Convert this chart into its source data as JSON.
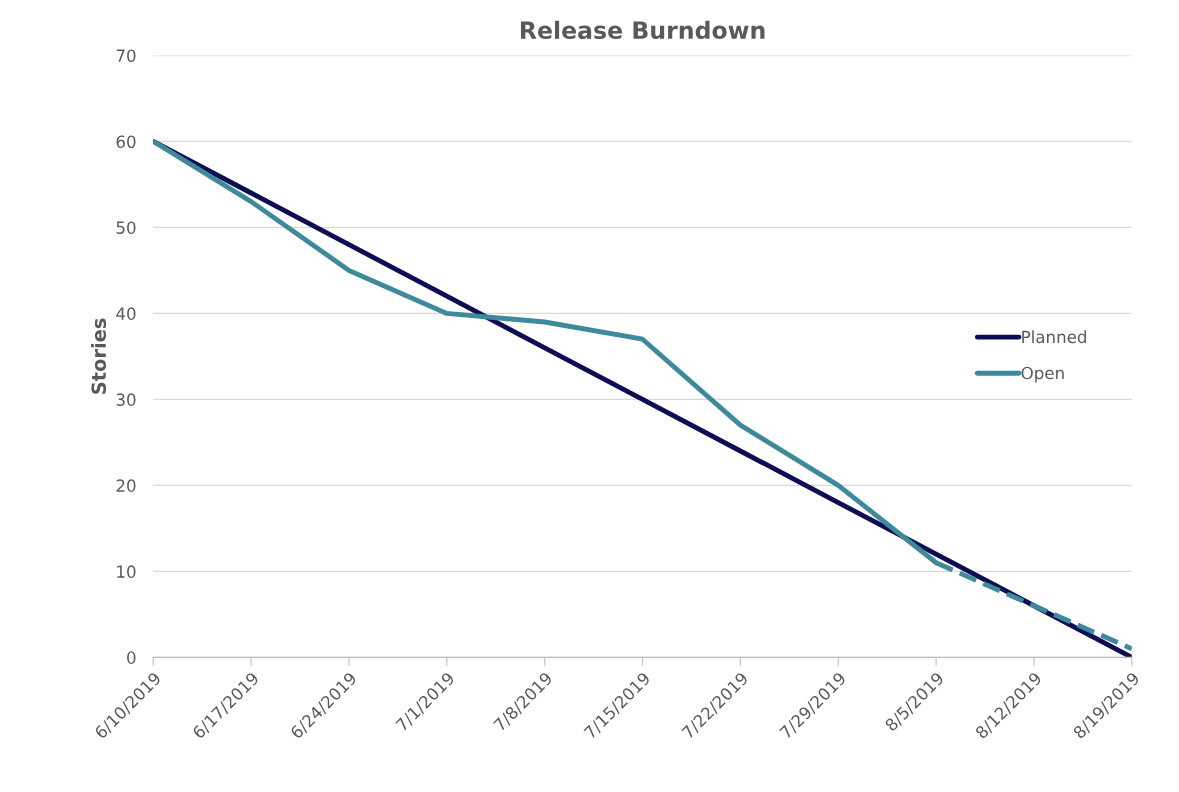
{
  "chart_data": {
    "type": "line",
    "title": "Release Burndown",
    "ylabel": "Stories",
    "categories": [
      "6/10/2019",
      "6/17/2019",
      "6/24/2019",
      "7/1/2019",
      "7/8/2019",
      "7/15/2019",
      "7/22/2019",
      "7/29/2019",
      "8/5/2019",
      "8/12/2019",
      "8/19/2019"
    ],
    "series": [
      {
        "name": "Planned",
        "color": "#0d0d55",
        "values": [
          60,
          54,
          48,
          42,
          36,
          30,
          24,
          18,
          12,
          6,
          0
        ]
      },
      {
        "name": "Open",
        "color": "#3e8a9c",
        "values": [
          60,
          53,
          45,
          40,
          39,
          37,
          27,
          20,
          11,
          null,
          null
        ]
      },
      {
        "color": "#3e8a9c",
        "line_style": "dashed",
        "values": [
          null,
          null,
          null,
          null,
          null,
          null,
          null,
          null,
          11,
          6,
          1
        ]
      }
    ],
    "ylim": [
      0,
      70
    ],
    "yticks": [
      0,
      10,
      20,
      30,
      40,
      50,
      60,
      70
    ],
    "grid": "y",
    "legend": "right",
    "marker": "none",
    "line_style": "solid"
  }
}
